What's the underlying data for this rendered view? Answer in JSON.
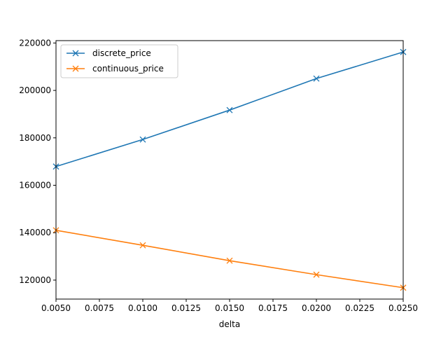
{
  "chart_data": {
    "type": "line",
    "title": "",
    "xlabel": "delta",
    "ylabel": "",
    "xlim": [
      0.005,
      0.025
    ],
    "ylim": [
      112000,
      221000
    ],
    "x_ticks": [
      "0.0050",
      "0.0075",
      "0.0100",
      "0.0125",
      "0.0150",
      "0.0175",
      "0.0200",
      "0.0225",
      "0.0250"
    ],
    "x_tick_values": [
      0.005,
      0.0075,
      0.01,
      0.0125,
      0.015,
      0.0175,
      0.02,
      0.0225,
      0.025
    ],
    "y_ticks": [
      "120000",
      "140000",
      "160000",
      "180000",
      "200000",
      "220000"
    ],
    "y_tick_values": [
      120000,
      140000,
      160000,
      180000,
      200000,
      220000
    ],
    "grid": false,
    "legend_position": "upper-left",
    "marker": "x",
    "x": [
      0.005,
      0.01,
      0.015,
      0.02,
      0.025
    ],
    "series": [
      {
        "name": "discrete_price",
        "color": "#1f77b4",
        "values": [
          167900,
          179300,
          191700,
          205000,
          216200
        ]
      },
      {
        "name": "continuous_price",
        "color": "#ff7f0e",
        "values": [
          141000,
          134700,
          128200,
          122300,
          116800
        ]
      }
    ]
  }
}
